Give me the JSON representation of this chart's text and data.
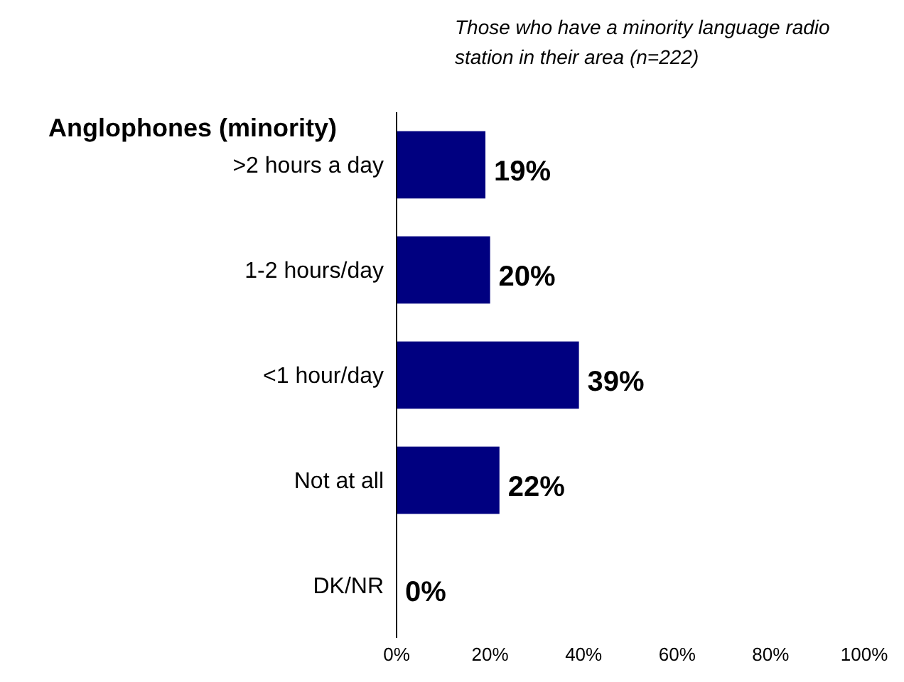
{
  "chart_data": {
    "type": "bar",
    "orientation": "horizontal",
    "title": "Anglophones (minority)",
    "subtitle": "Those who have a minority language radio station in their area (n=222)",
    "categories": [
      ">2 hours a day",
      "1-2 hours/day",
      "<1 hour/day",
      "Not at all",
      "DK/NR"
    ],
    "values": [
      19,
      20,
      39,
      22,
      0
    ],
    "color": "#000080",
    "value_labels": [
      "19%",
      "20%",
      "39%",
      "22%",
      "0%"
    ],
    "xlim": [
      0,
      100
    ],
    "xticks": [
      {
        "value": 0,
        "label": "0%"
      },
      {
        "value": 20,
        "label": "20%"
      },
      {
        "value": 40,
        "label": "40%"
      },
      {
        "value": 60,
        "label": "60%"
      },
      {
        "value": 80,
        "label": "80%"
      },
      {
        "value": 100,
        "label": "100%"
      }
    ],
    "grid": false
  }
}
